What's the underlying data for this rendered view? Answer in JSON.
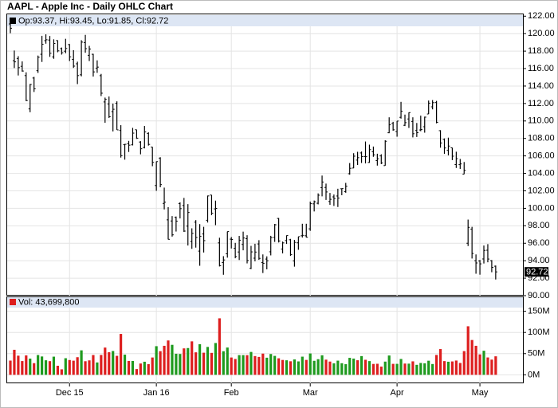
{
  "chart_data": [
    {
      "type": "ohlc",
      "title": "AAPL - Apple Inc - Daily OHLC Chart",
      "legend": "Op:93.37, Hi:93.45, Lo:91.85, Cl:92.72",
      "last_label": "92.72",
      "color": "#000000",
      "grid": true,
      "categories": [
        null,
        null,
        null,
        null,
        null,
        null,
        null,
        null,
        null,
        null,
        null,
        null,
        null,
        null,
        null,
        "Dec 15",
        null,
        null,
        null,
        null,
        null,
        null,
        null,
        null,
        null,
        null,
        null,
        null,
        null,
        null,
        null,
        null,
        null,
        null,
        null,
        null,
        null,
        "Jan 16",
        null,
        null,
        null,
        null,
        null,
        null,
        null,
        null,
        null,
        null,
        null,
        null,
        null,
        null,
        null,
        null,
        null,
        null,
        "Feb",
        null,
        null,
        null,
        null,
        null,
        null,
        null,
        null,
        null,
        null,
        null,
        null,
        null,
        null,
        null,
        null,
        null,
        null,
        null,
        "Mar",
        null,
        null,
        null,
        null,
        null,
        null,
        null,
        null,
        null,
        null,
        null,
        null,
        null,
        null,
        null,
        null,
        null,
        null,
        null,
        null,
        null,
        "Apr",
        null,
        null,
        null,
        null,
        null,
        null,
        null,
        null,
        null,
        null,
        null,
        null,
        null,
        null,
        null,
        null,
        null,
        null,
        null,
        null,
        "May",
        null,
        null,
        null,
        null
      ],
      "open": [
        121.11,
        116.9,
        117.16,
        116.26,
        115.2,
        111.38,
        114.92,
        115.76,
        117.64,
        119.2,
        119.27,
        117.33,
        119.21,
        118.29,
        117.99,
        118.75,
        117.05,
        116.55,
        115.29,
        118.98,
        117.52,
        117.64,
        116.04,
        115.19,
        112.18,
        111.94,
        111.07,
        112.02,
        108.91,
        107.28,
        107.4,
        107.27,
        109,
        107.59,
        106.96,
        108.58,
        107.01,
        102.61,
        105.75,
        100.56,
        98.68,
        98.55,
        98.97,
        100.55,
        100.32,
        97.96,
        96.2,
        98.41,
        95.1,
        97.06,
        98.63,
        101.52,
        99.93,
        96.04,
        93.79,
        94.79,
        96.47,
        95.42,
        95,
        95.86,
        96.52,
        93.13,
        94.29,
        95.92,
        93.79,
        94.19,
        95.02,
        96.67,
        98.84,
        95.33,
        96.31,
        96.4,
        93.98,
        96.05,
        96.86,
        96.86,
        97.65,
        100.51,
        100.58,
        102.37,
        102.39,
        100.78,
        101.31,
        101.41,
        102.24,
        101.91,
        103.96,
        104.61,
        105.52,
        106.34,
        105.93,
        105.25,
        106.48,
        105.47,
        106,
        104.89,
        108.65,
        109.72,
        108.78,
        110.42,
        109.51,
        110.23,
        109.95,
        108.91,
        108.97,
        109.34,
        110.8,
        111.62,
        112.11,
        108.89,
        107.88,
        106.64,
        106.93,
        105.01,
        105,
        103.91,
        96,
        97.61,
        94,
        93.97,
        94.2,
        95.2,
        94,
        93.37
      ],
      "high": [
        121.81,
        118.07,
        117.42,
        116.82,
        115.57,
        114.24,
        115.05,
        117.49,
        119.75,
        119.92,
        119.73,
        119.35,
        119.23,
        118.41,
        119.41,
        118.81,
        118.11,
        116.79,
        119.25,
        119.86,
        118.6,
        117.69,
        116.94,
        115.39,
        112.68,
        112.8,
        111.99,
        112.25,
        109.52,
        107.37,
        107.72,
        109.21,
        109,
        107.69,
        109.43,
        108.7,
        107.03,
        105.37,
        105.85,
        102.37,
        100.13,
        99.11,
        99.06,
        100.69,
        101.19,
        100.48,
        97.71,
        98.65,
        98.19,
        97.88,
        101.46,
        101.53,
        100.88,
        96.63,
        94.52,
        97.34,
        96.71,
        96.04,
        96.84,
        97.33,
        96.92,
        95.7,
        95.94,
        96.35,
        94.72,
        94.5,
        96.85,
        98.21,
        98.89,
        96.19,
        96.9,
        96.5,
        96.38,
        96.76,
        98.23,
        98.23,
        100.77,
        100.89,
        101.71,
        103.75,
        102.83,
        101.76,
        101.58,
        102.24,
        102.28,
        102.91,
        105.18,
        106.31,
        106.47,
        106.5,
        107.65,
        107.29,
        107.07,
        106.25,
        106.19,
        107.79,
        110.42,
        109.9,
        110,
        112.19,
        110.73,
        110.98,
        110.42,
        109.77,
        110.61,
        110.5,
        112.34,
        112.39,
        112.3,
        108.95,
        108,
        108.09,
        106.93,
        106.48,
        105.65,
        105.3,
        98.71,
        97.88,
        94.72,
        94.08,
        95.74,
        95.9,
        94.07,
        93.45
      ],
      "low": [
        120.05,
        116.06,
        115.21,
        115.65,
        112.27,
        111,
        113.32,
        115.5,
        116.76,
        118.85,
        117.34,
        117.12,
        117.87,
        117.6,
        117.75,
        116.86,
        116.08,
        114.22,
        115.11,
        117.81,
        116.86,
        115.08,
        115.51,
        112.85,
        109.79,
        110.35,
        108.8,
        108.98,
        105.81,
        105.57,
        106.45,
        107.2,
        107.95,
        106.18,
        106.86,
        107.18,
        104.82,
        102,
        102.41,
        99.87,
        96.43,
        96.76,
        97.34,
        98.84,
        97.3,
        95.74,
        95.36,
        95.5,
        93.42,
        94.94,
        98.37,
        99.21,
        98.07,
        93.34,
        92.39,
        94.35,
        95.4,
        94.28,
        94.08,
        95.19,
        93.69,
        93.04,
        93.93,
        94.1,
        92.59,
        93.01,
        94.61,
        96.15,
        96.09,
        94.84,
        95.92,
        94.55,
        93.32,
        95.25,
        96.65,
        96.65,
        97.42,
        99.64,
        100.45,
        101.37,
        100.96,
        100.4,
        100.27,
        100.15,
        101.5,
        101.78,
        103.85,
        104.59,
        104.96,
        105.19,
        105.14,
        105.21,
        105.9,
        104.89,
        105.06,
        104.88,
        108.6,
        108.88,
        108.2,
        110.27,
        109.42,
        109.2,
        108.12,
        108.17,
        108.83,
        108.66,
        110.8,
        111.33,
        109.73,
        106.94,
        106.23,
        106.06,
        105.52,
        104.62,
        104.51,
        103.91,
        95.68,
        94.25,
        92.51,
        92.4,
        93.68,
        93.82,
        92.68,
        91.85
      ],
      "close": [
        120.62,
        116.77,
        116.11,
        115.72,
        112.34,
        114.18,
        113.69,
        117.29,
        118.78,
        119.3,
        117.75,
        118.88,
        118.03,
        117.81,
        118.3,
        117.34,
        116.28,
        115.2,
        119.03,
        118.28,
        118.23,
        115.62,
        116.17,
        113.18,
        112.48,
        110.49,
        111.34,
        108.98,
        106.03,
        107.33,
        107.23,
        108.61,
        108.03,
        106.82,
        108.74,
        107.32,
        105.26,
        105.35,
        102.71,
        100.7,
        96.45,
        96.96,
        98.53,
        99.96,
        97.39,
        99.52,
        97.13,
        96.66,
        96.79,
        96.3,
        101.42,
        99.44,
        99.99,
        93.42,
        94.09,
        97.34,
        96.43,
        94.48,
        96.35,
        96.6,
        94.02,
        95.01,
        94.99,
        94.27,
        93.7,
        93.99,
        96.64,
        98.12,
        96.26,
        96.04,
        96.88,
        94.69,
        96.1,
        96.76,
        96.91,
        96.69,
        100.53,
        100.75,
        101.5,
        103.01,
        101.87,
        101.03,
        101.12,
        101.17,
        102.26,
        102.52,
        104.58,
        105.97,
        105.8,
        105.92,
        105.91,
        106.72,
        106.13,
        105.67,
        105.19,
        107.68,
        109.56,
        108.99,
        109.99,
        111.12,
        109.81,
        110.96,
        108.54,
        108.66,
        109.02,
        110.44,
        112.04,
        112.1,
        109.85,
        107.48,
        106.91,
        107.13,
        105.97,
        105.68,
        105.08,
        104.35,
        97.82,
        94.83,
        93.74,
        93.64,
        95.18,
        94.19,
        93.24,
        92.72
      ],
      "ylim": [
        90,
        122.3
      ],
      "yticks": [
        {
          "value": 90,
          "label": "90.00"
        },
        {
          "value": 92,
          "label": "92.00"
        },
        {
          "value": 94,
          "label": "94.00"
        },
        {
          "value": 96,
          "label": "96.00"
        },
        {
          "value": 98,
          "label": "98.00"
        },
        {
          "value": 100,
          "label": "100.00"
        },
        {
          "value": 102,
          "label": "102.00"
        },
        {
          "value": 104,
          "label": "104.00"
        },
        {
          "value": 106,
          "label": "106.00"
        },
        {
          "value": 108,
          "label": "108.00"
        },
        {
          "value": 110,
          "label": "110.00"
        },
        {
          "value": 112,
          "label": "112.00"
        },
        {
          "value": 114,
          "label": "114.00"
        },
        {
          "value": 116,
          "label": "116.00"
        },
        {
          "value": 118,
          "label": "118.00"
        },
        {
          "value": 120,
          "label": "120.00"
        },
        {
          "value": 122,
          "label": "122.00"
        }
      ]
    },
    {
      "type": "volume",
      "legend": "Vol: 43,699,800",
      "up_color": "#1e9a1e",
      "down_color": "#dd1e1e",
      "values": [
        33.6,
        59.1,
        45.2,
        32.5,
        45.8,
        38.3,
        27.5,
        46.7,
        43.3,
        34.3,
        32.3,
        42.9,
        21.4,
        13,
        39.2,
        34.9,
        33.4,
        41.6,
        57.8,
        32.1,
        34.1,
        46.7,
        29.2,
        46.9,
        64.3,
        53.3,
        56.2,
        44.8,
        96.5,
        47.6,
        32.8,
        32.7,
        13.6,
        26.7,
        30.9,
        25.2,
        40.9,
        67.6,
        55.8,
        68.5,
        81.1,
        70.8,
        49.7,
        49.2,
        62.4,
        63.2,
        79,
        53.1,
        72.3,
        52.2,
        65.8,
        51.8,
        75.1,
        133.4,
        55.7,
        64.4,
        40.9,
        37.4,
        46.5,
        46.5,
        46.4,
        54,
        44.3,
        42.3,
        50.1,
        40.4,
        49.1,
        44.7,
        39,
        35.1,
        34.3,
        32,
        36.3,
        31.7,
        42.9,
        35.2,
        50.4,
        33.1,
        36.9,
        46.1,
        35.8,
        31.3,
        27.1,
        33.5,
        27.4,
        25.1,
        40.1,
        38.3,
        34.4,
        44.2,
        35.5,
        32.4,
        25.7,
        26.1,
        19.4,
        31.2,
        45.6,
        25.9,
        25.9,
        37.4,
        26.6,
        26.4,
        31.8,
        23.6,
        28,
        27.2,
        33.3,
        25.5,
        46.9,
        60.8,
        32.4,
        30.9,
        31.6,
        33.7,
        28,
        56,
        114.6,
        82.2,
        68.5,
        48.2,
        56.8,
        41,
        35.9,
        43.6998
      ],
      "ylim": [
        -20,
        185
      ],
      "yticks": [
        {
          "value": 0,
          "label": "0M"
        },
        {
          "value": 50,
          "label": "50M"
        },
        {
          "value": 100,
          "label": "100M"
        },
        {
          "value": 150,
          "label": "150M"
        }
      ]
    }
  ]
}
